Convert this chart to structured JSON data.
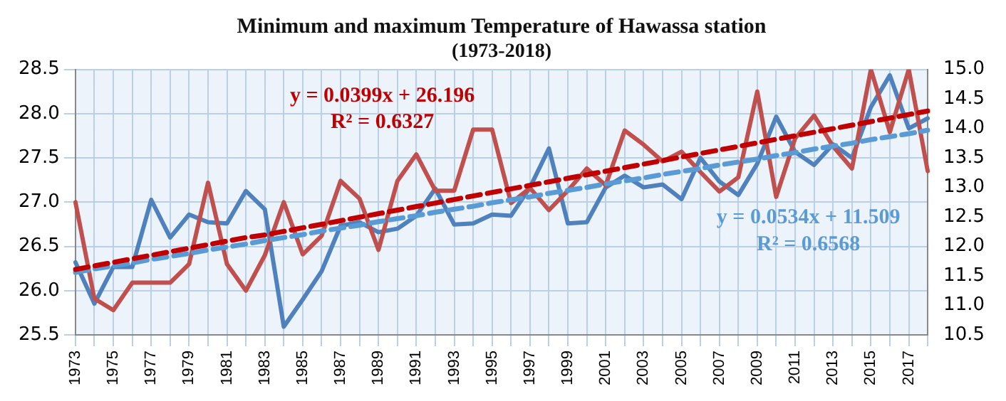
{
  "chart_data": {
    "type": "line",
    "title": "Minimum and maximum Temperature of Hawassa station",
    "subtitle": "(1973-2018)",
    "categories": [
      "1973",
      null,
      "1975",
      null,
      "1977",
      null,
      "1979",
      null,
      "1981",
      null,
      "1983",
      null,
      "1985",
      null,
      "1987",
      null,
      "1989",
      null,
      "1991",
      null,
      "1993",
      null,
      "1995",
      null,
      "1997",
      null,
      "1999",
      null,
      "2001",
      null,
      "2003",
      null,
      "2005",
      null,
      "2007",
      null,
      "2009",
      null,
      "2011",
      null,
      "2013",
      null,
      "2015",
      null,
      "2017",
      null
    ],
    "series": [
      {
        "color": "#c0504d",
        "values": [
          27.0,
          25.91,
          25.78,
          26.09,
          26.09,
          26.09,
          26.3,
          27.22,
          26.3,
          26.0,
          26.4,
          27.0,
          26.41,
          26.62,
          27.24,
          27.04,
          26.46,
          27.24,
          27.54,
          27.13,
          27.13,
          27.82,
          27.82,
          26.99,
          27.16,
          26.91,
          27.13,
          27.38,
          27.19,
          27.81,
          27.65,
          27.46,
          27.57,
          27.34,
          27.12,
          27.28,
          28.25,
          27.06,
          27.72,
          27.98,
          27.63,
          27.38,
          28.5,
          27.79,
          28.5,
          27.35
        ]
      },
      {
        "color": "#4f81bd",
        "axis": "y2",
        "values": [
          11.73,
          11.03,
          11.65,
          11.65,
          12.79,
          12.15,
          12.54,
          12.41,
          12.39,
          12.94,
          12.63,
          10.64,
          11.1,
          11.58,
          12.35,
          12.41,
          12.24,
          12.3,
          12.52,
          12.98,
          12.37,
          12.39,
          12.54,
          12.52,
          13.0,
          13.66,
          12.39,
          12.41,
          13.0,
          13.2,
          13.0,
          13.05,
          12.8,
          13.5,
          13.1,
          12.87,
          13.4,
          14.2,
          13.6,
          13.38,
          13.73,
          13.5,
          14.36,
          14.9,
          14.0,
          14.17
        ]
      },
      {
        "type": "line",
        "color": "#c00000",
        "line_style": "dashed",
        "values": [
          26.24,
          26.28,
          26.32,
          26.36,
          26.4,
          26.44,
          26.48,
          26.52,
          26.56,
          26.6,
          26.63,
          26.67,
          26.71,
          26.75,
          26.79,
          26.83,
          26.87,
          26.91,
          26.95,
          26.99,
          27.03,
          27.07,
          27.11,
          27.15,
          27.19,
          27.23,
          27.27,
          27.31,
          27.35,
          27.39,
          27.43,
          27.47,
          27.51,
          27.55,
          27.59,
          27.63,
          27.67,
          27.71,
          27.75,
          27.79,
          27.83,
          27.87,
          27.91,
          27.95,
          27.99,
          28.03
        ]
      },
      {
        "type": "line",
        "color": "#5b9bd5",
        "line_style": "dashed",
        "axis": "y2",
        "values": [
          11.56,
          11.62,
          11.67,
          11.72,
          11.78,
          11.83,
          11.88,
          11.94,
          11.99,
          12.04,
          12.1,
          12.15,
          12.2,
          12.26,
          12.31,
          12.36,
          12.42,
          12.47,
          12.52,
          12.58,
          12.63,
          12.68,
          12.74,
          12.79,
          12.84,
          12.9,
          12.95,
          13.0,
          13.06,
          13.11,
          13.16,
          13.22,
          13.27,
          13.32,
          13.38,
          13.43,
          13.48,
          13.54,
          13.59,
          13.65,
          13.7,
          13.75,
          13.81,
          13.86,
          13.91,
          13.97
        ]
      }
    ],
    "ylim": [
      25.5,
      28.5
    ],
    "yticks": [
      {
        "value": 25.5,
        "label": "25.5"
      },
      {
        "value": 26,
        "label": "26.0"
      },
      {
        "value": 26.5,
        "label": "26.5"
      },
      {
        "value": 27,
        "label": "27.0"
      },
      {
        "value": 27.5,
        "label": "27.5"
      },
      {
        "value": 28,
        "label": "28.0"
      },
      {
        "value": 28.5,
        "label": "28.5"
      }
    ],
    "y2lim": [
      10.5,
      15.0
    ],
    "y2ticks": [
      {
        "value": 10.5,
        "label": "10.5"
      },
      {
        "value": 11,
        "label": "11.0"
      },
      {
        "value": 11.5,
        "label": "11.5"
      },
      {
        "value": 12,
        "label": "12.0"
      },
      {
        "value": 12.5,
        "label": "12.5"
      },
      {
        "value": 13,
        "label": "13.0"
      },
      {
        "value": 13.5,
        "label": "13.5"
      },
      {
        "value": 14,
        "label": "14.0"
      },
      {
        "value": 14.5,
        "label": "14.5"
      },
      {
        "value": 15,
        "label": "15.0"
      }
    ],
    "annotations": [
      "y = 0.0399x + 26.196",
      "R² = 0.6327",
      "y = 0.0534x + 11.509",
      "R² = 0.6568"
    ],
    "grid": true,
    "legend": false,
    "marker": "none",
    "line_style": "solid"
  }
}
